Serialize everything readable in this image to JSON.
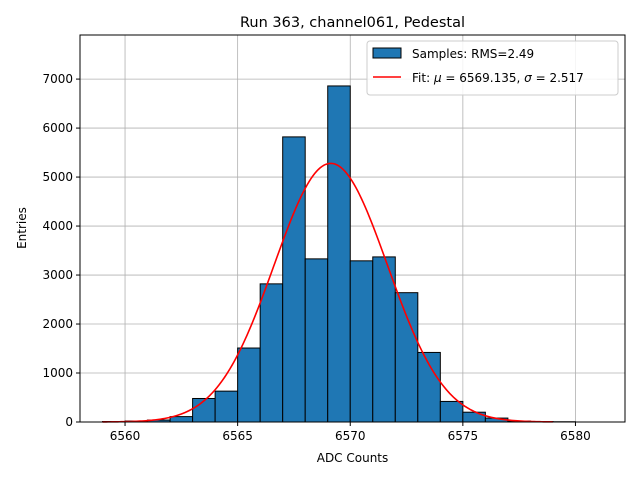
{
  "chart_data": {
    "type": "histogram",
    "title": "Run 363, channel061, Pedestal",
    "xlabel": "ADC Counts",
    "ylabel": "Entries",
    "xlim": [
      6558.0,
      6582.2
    ],
    "ylim": [
      0,
      7900
    ],
    "xticks": [
      6560,
      6565,
      6570,
      6575,
      6580
    ],
    "yticks": [
      0,
      1000,
      2000,
      3000,
      4000,
      5000,
      6000,
      7000
    ],
    "grid": true,
    "legend_position": "top-right",
    "bin_width": 1,
    "bins": [
      {
        "start": 6559,
        "value": 10
      },
      {
        "start": 6560,
        "value": 20
      },
      {
        "start": 6561,
        "value": 40
      },
      {
        "start": 6562,
        "value": 110
      },
      {
        "start": 6563,
        "value": 480
      },
      {
        "start": 6564,
        "value": 630
      },
      {
        "start": 6565,
        "value": 1510
      },
      {
        "start": 6566,
        "value": 2820
      },
      {
        "start": 6567,
        "value": 5820
      },
      {
        "start": 6568,
        "value": 3330
      },
      {
        "start": 6569,
        "value": 6860
      },
      {
        "start": 6570,
        "value": 3290
      },
      {
        "start": 6571,
        "value": 3370
      },
      {
        "start": 6572,
        "value": 2640
      },
      {
        "start": 6573,
        "value": 1420
      },
      {
        "start": 6574,
        "value": 420
      },
      {
        "start": 6575,
        "value": 200
      },
      {
        "start": 6576,
        "value": 80
      },
      {
        "start": 6577,
        "value": 20
      },
      {
        "start": 6578,
        "value": 10
      },
      {
        "start": 6579,
        "value": 5
      }
    ],
    "fit": {
      "type": "gaussian",
      "mu": 6569.135,
      "sigma": 2.517,
      "amplitude": 5280,
      "x_range": [
        6559,
        6579
      ]
    },
    "legend": {
      "samples_label": "Samples: RMS=2.49",
      "fit_label_prefix": "Fit: ",
      "mu_symbol": "μ",
      "mu_text": " = 6569.135, ",
      "sigma_symbol": "σ",
      "sigma_text": " = 2.517"
    },
    "colors": {
      "bar_fill": "#1f77b4",
      "bar_edge": "#000000",
      "fit_line": "#ff0000",
      "grid": "#b0b0b0"
    }
  }
}
